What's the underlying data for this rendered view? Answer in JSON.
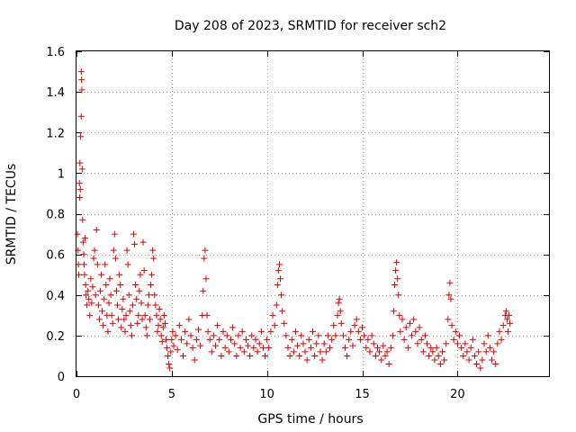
{
  "chart_data": {
    "type": "scatter",
    "title": "Day 208 of 2023, SRMTID for receiver sch2",
    "xlabel": "GPS time / hours",
    "ylabel": "SRMTID / TECUs",
    "xlim": [
      0,
      24.8
    ],
    "ylim": [
      0,
      1.6
    ],
    "xticks": [
      0,
      5,
      10,
      15,
      20
    ],
    "xtick_labels": [
      "0",
      "5",
      "10",
      "15",
      "20"
    ],
    "yticks": [
      0,
      0.2,
      0.4,
      0.6,
      0.8,
      1.0,
      1.2,
      1.4,
      1.6
    ],
    "ytick_labels": [
      "0",
      "0.2",
      "0.4",
      "0.6",
      "0.8",
      "1",
      "1.2",
      "1.4",
      "1.6"
    ],
    "grid": true,
    "marker": "+",
    "color": "#e00000",
    "series": [
      {
        "name": "sch2",
        "points": [
          [
            0.05,
            0.7
          ],
          [
            0.08,
            0.62
          ],
          [
            0.1,
            0.55
          ],
          [
            0.12,
            0.5
          ],
          [
            0.15,
            0.95
          ],
          [
            0.17,
            0.88
          ],
          [
            0.18,
            1.05
          ],
          [
            0.2,
            0.92
          ],
          [
            0.22,
            1.18
          ],
          [
            0.25,
            1.28
          ],
          [
            0.25,
            1.5
          ],
          [
            0.27,
            1.46
          ],
          [
            0.28,
            1.41
          ],
          [
            0.3,
            1.02
          ],
          [
            0.32,
            0.77
          ],
          [
            0.35,
            0.66
          ],
          [
            0.38,
            0.6
          ],
          [
            0.4,
            0.55
          ],
          [
            0.42,
            0.5
          ],
          [
            0.45,
            0.68
          ],
          [
            0.48,
            0.45
          ],
          [
            0.5,
            0.4
          ],
          [
            0.55,
            0.35
          ],
          [
            0.6,
            0.42
          ],
          [
            0.65,
            0.38
          ],
          [
            0.7,
            0.3
          ],
          [
            0.75,
            0.48
          ],
          [
            0.8,
            0.36
          ],
          [
            0.85,
            0.44
          ],
          [
            0.9,
            0.58
          ],
          [
            0.95,
            0.62
          ],
          [
            1.0,
            0.4
          ],
          [
            1.05,
            0.72
          ],
          [
            1.1,
            0.55
          ],
          [
            1.15,
            0.35
          ],
          [
            1.2,
            0.28
          ],
          [
            1.25,
            0.42
          ],
          [
            1.3,
            0.5
          ],
          [
            1.35,
            0.32
          ],
          [
            1.4,
            0.25
          ],
          [
            1.45,
            0.38
          ],
          [
            1.5,
            0.55
          ],
          [
            1.55,
            0.45
          ],
          [
            1.6,
            0.3
          ],
          [
            1.65,
            0.22
          ],
          [
            1.7,
            0.36
          ],
          [
            1.75,
            0.48
          ],
          [
            1.8,
            0.4
          ],
          [
            1.85,
            0.3
          ],
          [
            1.9,
            0.26
          ],
          [
            1.95,
            0.62
          ],
          [
            2.0,
            0.7
          ],
          [
            2.05,
            0.58
          ],
          [
            2.1,
            0.42
          ],
          [
            2.15,
            0.35
          ],
          [
            2.2,
            0.28
          ],
          [
            2.25,
            0.5
          ],
          [
            2.3,
            0.45
          ],
          [
            2.35,
            0.24
          ],
          [
            2.4,
            0.33
          ],
          [
            2.45,
            0.38
          ],
          [
            2.5,
            0.28
          ],
          [
            2.55,
            0.22
          ],
          [
            2.6,
            0.3
          ],
          [
            2.65,
            0.62
          ],
          [
            2.7,
            0.55
          ],
          [
            2.75,
            0.4
          ],
          [
            2.8,
            0.32
          ],
          [
            2.85,
            0.25
          ],
          [
            2.9,
            0.2
          ],
          [
            2.95,
            0.35
          ],
          [
            3.0,
            0.7
          ],
          [
            3.05,
            0.65
          ],
          [
            3.1,
            0.45
          ],
          [
            3.15,
            0.38
          ],
          [
            3.2,
            0.26
          ],
          [
            3.25,
            0.3
          ],
          [
            3.3,
            0.42
          ],
          [
            3.35,
            0.5
          ],
          [
            3.4,
            0.36
          ],
          [
            3.45,
            0.28
          ],
          [
            3.5,
            0.66
          ],
          [
            3.55,
            0.52
          ],
          [
            3.6,
            0.3
          ],
          [
            3.65,
            0.24
          ],
          [
            3.7,
            0.2
          ],
          [
            3.75,
            0.35
          ],
          [
            3.8,
            0.4
          ],
          [
            3.85,
            0.28
          ],
          [
            3.9,
            0.45
          ],
          [
            3.95,
            0.5
          ],
          [
            4.0,
            0.62
          ],
          [
            4.05,
            0.58
          ],
          [
            4.1,
            0.4
          ],
          [
            4.15,
            0.35
          ],
          [
            4.2,
            0.3
          ],
          [
            4.25,
            0.22
          ],
          [
            4.3,
            0.25
          ],
          [
            4.35,
            0.33
          ],
          [
            4.4,
            0.28
          ],
          [
            4.45,
            0.2
          ],
          [
            4.5,
            0.17
          ],
          [
            4.55,
            0.24
          ],
          [
            4.6,
            0.3
          ],
          [
            4.65,
            0.26
          ],
          [
            4.7,
            0.18
          ],
          [
            4.75,
            0.14
          ],
          [
            4.8,
            0.1
          ],
          [
            4.85,
            0.06
          ],
          [
            4.9,
            0.04
          ],
          [
            4.95,
            0.12
          ],
          [
            5.0,
            0.18
          ],
          [
            5.05,
            0.22
          ],
          [
            5.1,
            0.15
          ],
          [
            5.2,
            0.2
          ],
          [
            5.3,
            0.13
          ],
          [
            5.4,
            0.25
          ],
          [
            5.5,
            0.18
          ],
          [
            5.6,
            0.1
          ],
          [
            5.7,
            0.22
          ],
          [
            5.8,
            0.16
          ],
          [
            5.9,
            0.28
          ],
          [
            6.0,
            0.2
          ],
          [
            6.1,
            0.14
          ],
          [
            6.2,
            0.08
          ],
          [
            6.3,
            0.18
          ],
          [
            6.4,
            0.23
          ],
          [
            6.5,
            0.15
          ],
          [
            6.6,
            0.3
          ],
          [
            6.65,
            0.42
          ],
          [
            6.7,
            0.58
          ],
          [
            6.75,
            0.62
          ],
          [
            6.8,
            0.48
          ],
          [
            6.85,
            0.3
          ],
          [
            6.9,
            0.22
          ],
          [
            7.0,
            0.18
          ],
          [
            7.1,
            0.12
          ],
          [
            7.2,
            0.2
          ],
          [
            7.3,
            0.15
          ],
          [
            7.4,
            0.25
          ],
          [
            7.5,
            0.18
          ],
          [
            7.6,
            0.1
          ],
          [
            7.7,
            0.22
          ],
          [
            7.8,
            0.14
          ],
          [
            7.9,
            0.2
          ],
          [
            8.0,
            0.12
          ],
          [
            8.1,
            0.18
          ],
          [
            8.2,
            0.24
          ],
          [
            8.3,
            0.16
          ],
          [
            8.4,
            0.1
          ],
          [
            8.5,
            0.2
          ],
          [
            8.6,
            0.14
          ],
          [
            8.7,
            0.22
          ],
          [
            8.8,
            0.12
          ],
          [
            8.9,
            0.18
          ],
          [
            9.0,
            0.15
          ],
          [
            9.1,
            0.1
          ],
          [
            9.2,
            0.2
          ],
          [
            9.3,
            0.14
          ],
          [
            9.4,
            0.18
          ],
          [
            9.5,
            0.12
          ],
          [
            9.6,
            0.16
          ],
          [
            9.7,
            0.22
          ],
          [
            9.8,
            0.14
          ],
          [
            9.9,
            0.1
          ],
          [
            10.0,
            0.18
          ],
          [
            10.1,
            0.14
          ],
          [
            10.2,
            0.22
          ],
          [
            10.3,
            0.3
          ],
          [
            10.4,
            0.25
          ],
          [
            10.5,
            0.35
          ],
          [
            10.55,
            0.45
          ],
          [
            10.6,
            0.52
          ],
          [
            10.65,
            0.55
          ],
          [
            10.7,
            0.48
          ],
          [
            10.75,
            0.4
          ],
          [
            10.8,
            0.32
          ],
          [
            10.9,
            0.26
          ],
          [
            11.0,
            0.2
          ],
          [
            11.1,
            0.14
          ],
          [
            11.2,
            0.1
          ],
          [
            11.3,
            0.18
          ],
          [
            11.4,
            0.12
          ],
          [
            11.5,
            0.22
          ],
          [
            11.6,
            0.15
          ],
          [
            11.7,
            0.1
          ],
          [
            11.8,
            0.2
          ],
          [
            11.9,
            0.16
          ],
          [
            12.0,
            0.12
          ],
          [
            12.1,
            0.08
          ],
          [
            12.2,
            0.18
          ],
          [
            12.3,
            0.14
          ],
          [
            12.4,
            0.22
          ],
          [
            12.5,
            0.1
          ],
          [
            12.6,
            0.16
          ],
          [
            12.7,
            0.2
          ],
          [
            12.8,
            0.12
          ],
          [
            12.9,
            0.08
          ],
          [
            13.0,
            0.16
          ],
          [
            13.1,
            0.12
          ],
          [
            13.2,
            0.2
          ],
          [
            13.3,
            0.14
          ],
          [
            13.4,
            0.18
          ],
          [
            13.5,
            0.25
          ],
          [
            13.6,
            0.2
          ],
          [
            13.7,
            0.3
          ],
          [
            13.75,
            0.36
          ],
          [
            13.8,
            0.38
          ],
          [
            13.85,
            0.32
          ],
          [
            13.9,
            0.26
          ],
          [
            14.0,
            0.2
          ],
          [
            14.1,
            0.14
          ],
          [
            14.2,
            0.1
          ],
          [
            14.3,
            0.18
          ],
          [
            14.4,
            0.22
          ],
          [
            14.5,
            0.15
          ],
          [
            14.6,
            0.25
          ],
          [
            14.7,
            0.28
          ],
          [
            14.8,
            0.22
          ],
          [
            14.9,
            0.18
          ],
          [
            15.0,
            0.24
          ],
          [
            15.1,
            0.2
          ],
          [
            15.2,
            0.14
          ],
          [
            15.3,
            0.18
          ],
          [
            15.4,
            0.12
          ],
          [
            15.5,
            0.2
          ],
          [
            15.6,
            0.16
          ],
          [
            15.7,
            0.1
          ],
          [
            15.8,
            0.14
          ],
          [
            15.9,
            0.12
          ],
          [
            16.0,
            0.08
          ],
          [
            16.1,
            0.15
          ],
          [
            16.2,
            0.1
          ],
          [
            16.3,
            0.12
          ],
          [
            16.4,
            0.06
          ],
          [
            16.5,
            0.14
          ],
          [
            16.6,
            0.2
          ],
          [
            16.65,
            0.32
          ],
          [
            16.7,
            0.45
          ],
          [
            16.75,
            0.52
          ],
          [
            16.8,
            0.56
          ],
          [
            16.85,
            0.48
          ],
          [
            16.9,
            0.4
          ],
          [
            16.95,
            0.3
          ],
          [
            17.0,
            0.22
          ],
          [
            17.1,
            0.28
          ],
          [
            17.2,
            0.18
          ],
          [
            17.3,
            0.24
          ],
          [
            17.4,
            0.14
          ],
          [
            17.5,
            0.26
          ],
          [
            17.6,
            0.2
          ],
          [
            17.7,
            0.28
          ],
          [
            17.8,
            0.22
          ],
          [
            17.9,
            0.16
          ],
          [
            18.0,
            0.24
          ],
          [
            18.1,
            0.18
          ],
          [
            18.2,
            0.12
          ],
          [
            18.3,
            0.2
          ],
          [
            18.4,
            0.16
          ],
          [
            18.5,
            0.1
          ],
          [
            18.6,
            0.14
          ],
          [
            18.7,
            0.12
          ],
          [
            18.8,
            0.08
          ],
          [
            18.9,
            0.14
          ],
          [
            19.0,
            0.1
          ],
          [
            19.1,
            0.06
          ],
          [
            19.2,
            0.12
          ],
          [
            19.3,
            0.08
          ],
          [
            19.4,
            0.16
          ],
          [
            19.5,
            0.28
          ],
          [
            19.55,
            0.4
          ],
          [
            19.6,
            0.46
          ],
          [
            19.65,
            0.38
          ],
          [
            19.7,
            0.25
          ],
          [
            19.8,
            0.18
          ],
          [
            19.9,
            0.22
          ],
          [
            20.0,
            0.16
          ],
          [
            20.1,
            0.2
          ],
          [
            20.2,
            0.14
          ],
          [
            20.3,
            0.1
          ],
          [
            20.4,
            0.16
          ],
          [
            20.5,
            0.12
          ],
          [
            20.6,
            0.08
          ],
          [
            20.7,
            0.14
          ],
          [
            20.8,
            0.18
          ],
          [
            20.9,
            0.1
          ],
          [
            21.0,
            0.06
          ],
          [
            21.1,
            0.12
          ],
          [
            21.2,
            0.04
          ],
          [
            21.3,
            0.08
          ],
          [
            21.4,
            0.16
          ],
          [
            21.5,
            0.12
          ],
          [
            21.6,
            0.2
          ],
          [
            21.7,
            0.14
          ],
          [
            21.8,
            0.08
          ],
          [
            21.9,
            0.12
          ],
          [
            22.0,
            0.06
          ],
          [
            22.1,
            0.16
          ],
          [
            22.2,
            0.22
          ],
          [
            22.3,
            0.18
          ],
          [
            22.4,
            0.25
          ],
          [
            22.5,
            0.3
          ],
          [
            22.55,
            0.32
          ],
          [
            22.6,
            0.28
          ],
          [
            22.65,
            0.22
          ],
          [
            22.7,
            0.3
          ],
          [
            22.75,
            0.26
          ]
        ]
      }
    ]
  }
}
